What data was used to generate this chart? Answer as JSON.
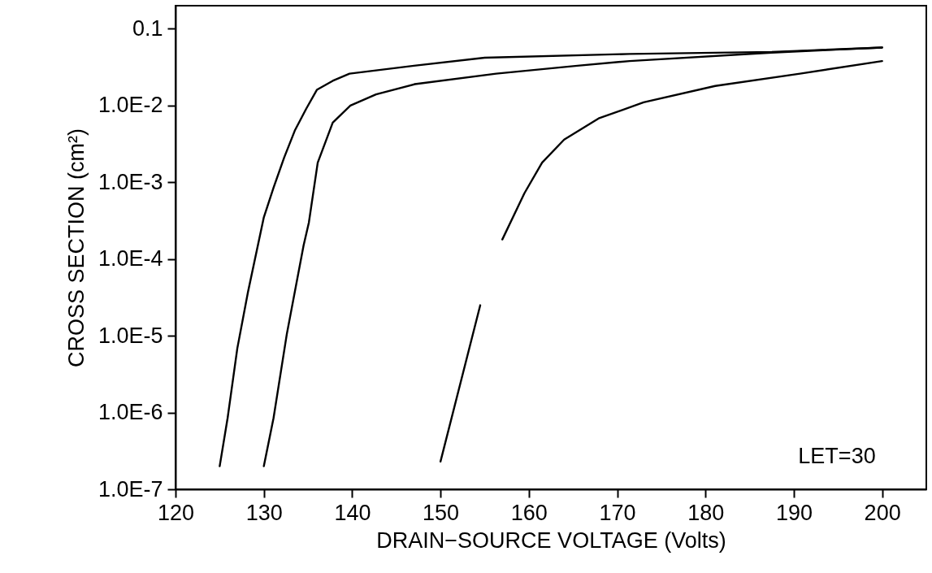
{
  "chart_data": {
    "type": "line",
    "xlabel": "DRAIN−SOURCE VOLTAGE (Volts)",
    "ylabel": "CROSS SECTION (cm²)",
    "annotations": [
      "LET=30"
    ],
    "log": true,
    "grid": false,
    "marker": "none",
    "line_style": "solid",
    "xlim": [
      120,
      205
    ],
    "xticks": [
      120,
      130,
      140,
      150,
      160,
      170,
      180,
      190,
      200
    ],
    "ylim": [
      1e-07,
      0.2
    ],
    "yticks": [
      0.1,
      {
        "value": 0.01,
        "label": "1.0E-2"
      },
      {
        "value": 0.001,
        "label": "1.0E-3"
      },
      {
        "value": 0.0001,
        "label": "1.0E-4"
      },
      {
        "value": 1e-05,
        "label": "1.0E-5"
      },
      {
        "value": 1e-06,
        "label": "1.0E-6"
      },
      {
        "value": 1e-07,
        "label": "1.0E-7"
      }
    ],
    "series": [
      {
        "color": "#000000",
        "x": [
          125,
          125.9,
          127,
          128.2,
          130,
          131.1,
          132.3,
          133.5,
          134.8,
          136,
          137.8,
          139.7,
          147,
          155,
          171.4,
          187.5,
          200
        ],
        "values": [
          2e-07,
          8.5e-07,
          6.9e-06,
          3.7e-05,
          0.00035,
          0.00085,
          0.0021,
          0.0047,
          0.0091,
          0.016,
          0.021,
          0.026,
          0.033,
          0.042,
          0.047,
          0.05,
          0.057
        ]
      },
      {
        "color": "#000000",
        "x": [
          130,
          131.1,
          132.6,
          134.5,
          135.1,
          136.1,
          137.8,
          139.8,
          142.7,
          147.1,
          156.3,
          165.5,
          171.4,
          187.5,
          200
        ],
        "values": [
          2e-07,
          8.5e-07,
          1.05e-05,
          0.00015,
          0.0003,
          0.0018,
          0.006,
          0.01,
          0.014,
          0.019,
          0.026,
          0.033,
          0.038,
          0.049,
          0.057
        ]
      },
      {
        "color": "#000000",
        "x": [
          150,
          154.5,
          155.8,
          157,
          159.5,
          161.5,
          164,
          167.9,
          173,
          181.1,
          190.7,
          200
        ],
        "values": [
          2.3e-07,
          2.5e-05,
          null,
          0.00018,
          0.00072,
          0.0018,
          0.0036,
          0.0068,
          0.011,
          0.018,
          0.026,
          0.038
        ]
      }
    ]
  }
}
